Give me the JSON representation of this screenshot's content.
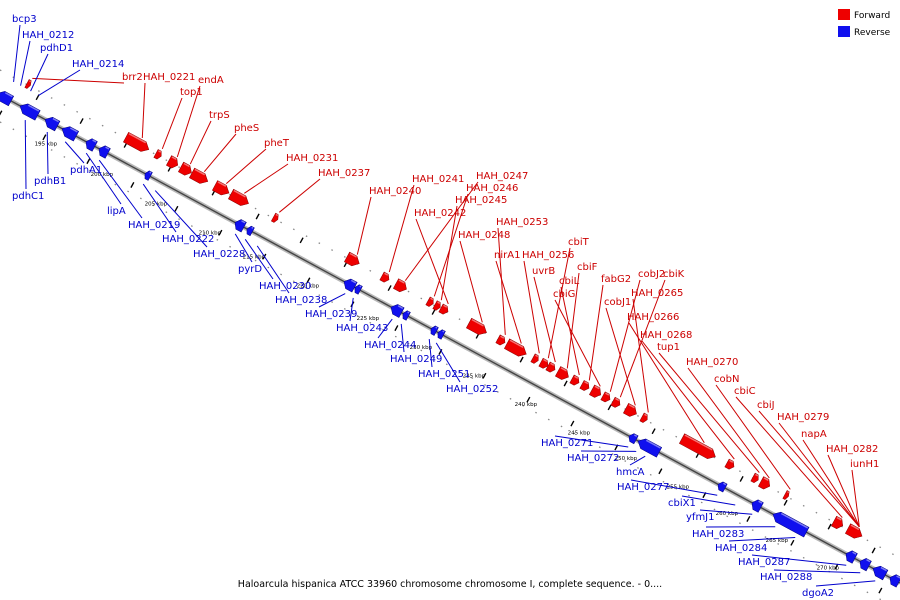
{
  "legend": {
    "forward_label": "Forward",
    "reverse_label": "Reverse",
    "forward_color": "#ee0000",
    "reverse_color": "#1010ee"
  },
  "caption": "Haloarcula hispanica ATCC 33960 chromosome chromosome I, complete sequence. - 0....",
  "scale_marks": [
    "195 kbp",
    "200 kbp",
    "205 kbp",
    "210 kbp",
    "215 kbp",
    "220 kbp",
    "225 kbp",
    "230 kbp",
    "235 kbp",
    "240 kbp",
    "245 kbp",
    "250 kbp",
    "255 kbp",
    "260 kbp",
    "265 kbp",
    "270 kbp"
  ],
  "forward_genes": [
    {
      "name": "brr2",
      "pos": 2.3
    },
    {
      "name": "HAH_0221",
      "pos": 3.2
    },
    {
      "name": "top1",
      "pos": 4.3
    },
    {
      "name": "endA",
      "pos": 5.1
    },
    {
      "name": "trpS",
      "pos": 7.2
    },
    {
      "name": "pheS",
      "pos": 9.0
    },
    {
      "name": "pheT",
      "pos": 11.0
    },
    {
      "name": "HAH_0231",
      "pos": 13.6
    },
    {
      "name": "HAH_0237",
      "pos": 19.2
    },
    {
      "name": "HAH_0240",
      "pos": 20.8
    },
    {
      "name": "HAH_0241",
      "pos": 22.0
    },
    {
      "name": "HAH_0247",
      "pos": 22.8
    },
    {
      "name": "HAH_0246",
      "pos": 23.6
    },
    {
      "name": "HAH_0245",
      "pos": 24.3
    },
    {
      "name": "HAH_0242",
      "pos": 23.0
    },
    {
      "name": "HAH_0248",
      "pos": 25.5
    },
    {
      "name": "HAH_0253",
      "pos": 27.2
    },
    {
      "name": "nirA1",
      "pos": 28.2
    },
    {
      "name": "HAH_0256",
      "pos": 29.1
    },
    {
      "name": "cbiT",
      "pos": 30.0
    },
    {
      "name": "uvrB",
      "pos": 30.5
    },
    {
      "name": "cbiF",
      "pos": 31.2
    },
    {
      "name": "cbiL",
      "pos": 31.9
    },
    {
      "name": "fabG2",
      "pos": 32.6
    },
    {
      "name": "cbiG",
      "pos": 33.0
    },
    {
      "name": "cobJ2",
      "pos": 33.6
    },
    {
      "name": "cbiK",
      "pos": 34.3
    },
    {
      "name": "cobJ1",
      "pos": 34.8
    },
    {
      "name": "HAH_0265",
      "pos": 35.4
    },
    {
      "name": "HAH_0266",
      "pos": 35.9
    },
    {
      "name": "HAH_0268",
      "pos": 36.5
    },
    {
      "name": "tup1",
      "pos": 37.3
    },
    {
      "name": "HAH_0270",
      "pos": 39.8
    },
    {
      "name": "cobN",
      "pos": 41.0
    },
    {
      "name": "cbiC",
      "pos": 42.1
    },
    {
      "name": "cbiJ",
      "pos": 42.8
    },
    {
      "name": "HAH_0279",
      "pos": 43.6
    },
    {
      "name": "napA",
      "pos": 45.0
    },
    {
      "name": "HAH_0282",
      "pos": 47.0
    },
    {
      "name": "iunH1",
      "pos": 49.0
    }
  ],
  "reverse_genes": [
    {
      "name": "bcp3",
      "pos": -0.9
    },
    {
      "name": "HAH_0212",
      "pos": 0.1
    },
    {
      "name": "pdhD1",
      "pos": 0.8
    },
    {
      "name": "HAH_0214",
      "pos": 1.7
    },
    {
      "name": "pdhC1",
      "pos": -0.4
    },
    {
      "name": "pdhB1",
      "pos": 0.6
    },
    {
      "name": "pdhA1",
      "pos": 1.6
    },
    {
      "name": "lipA",
      "pos": 2.6
    },
    {
      "name": "HAH_0219",
      "pos": 5.1
    },
    {
      "name": "HAH_0222",
      "pos": 6.4
    },
    {
      "name": "HAH_0228",
      "pos": 7.6
    },
    {
      "name": "pyrD",
      "pos": 8.4
    },
    {
      "name": "HAH_0230",
      "pos": 9.2
    },
    {
      "name": "HAH_0238",
      "pos": 12.4
    },
    {
      "name": "HAH_0239",
      "pos": 13.6
    },
    {
      "name": "HAH_0243",
      "pos": 14.8
    },
    {
      "name": "HAH_0244",
      "pos": 15.8
    },
    {
      "name": "HAH_0249",
      "pos": 17.1
    },
    {
      "name": "HAH_0251",
      "pos": 17.9
    },
    {
      "name": "HAH_0252",
      "pos": 18.7
    },
    {
      "name": "HAH_0271",
      "pos": 29.2
    },
    {
      "name": "HAH_0272",
      "pos": 30.0
    },
    {
      "name": "hmcA",
      "pos": 31.2
    },
    {
      "name": "HAH_0277",
      "pos": 32.6
    },
    {
      "name": "cbiX1",
      "pos": 33.9
    },
    {
      "name": "yfmJ1",
      "pos": 34.8
    },
    {
      "name": "HAH_0283",
      "pos": 35.8
    },
    {
      "name": "HAH_0284",
      "pos": 36.9
    },
    {
      "name": "HAH_0287",
      "pos": 38.7
    },
    {
      "name": "HAH_0288",
      "pos": 39.8
    },
    {
      "name": "dgoA2",
      "pos": 41.5
    }
  ]
}
